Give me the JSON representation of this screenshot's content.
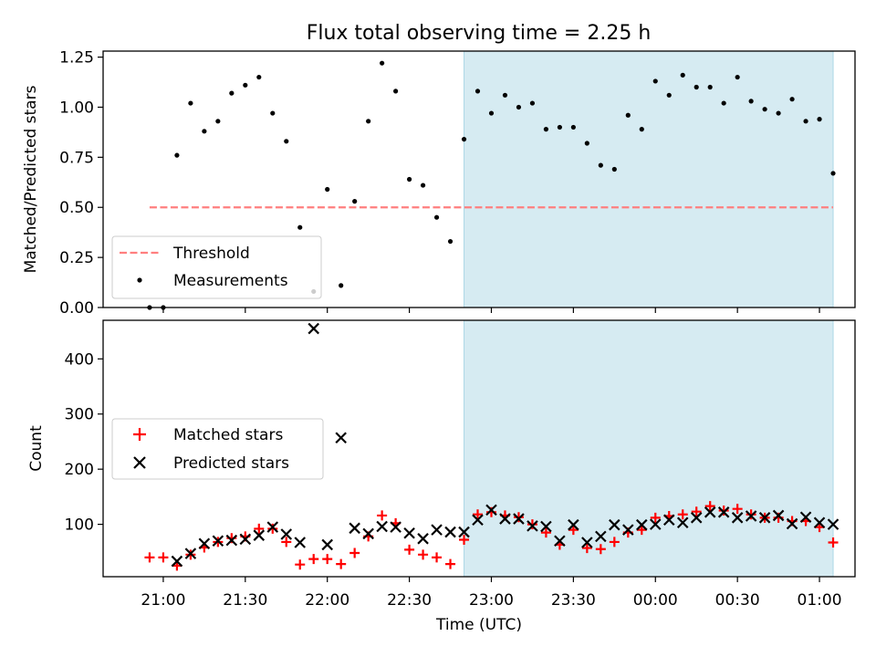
{
  "title": "Flux total observing time = 2.25 h",
  "xlabel": "Time (UTC)",
  "colors": {
    "measurements": "#000000",
    "threshold": "#ff7f7f",
    "matched": "#ff0000",
    "predicted": "#000000",
    "shade": "#add8e6"
  },
  "chart_data": [
    {
      "type": "scatter",
      "ylabel": "Matched/Predicted stars",
      "xlim": [
        "20:38",
        "01:13"
      ],
      "ylim": [
        0,
        1.28
      ],
      "yticks": [
        "0.00",
        "0.25",
        "0.50",
        "0.75",
        "1.00",
        "1.25"
      ],
      "shaded_region": [
        "22:50",
        "01:05"
      ],
      "legend": {
        "placement": "lower-left",
        "entries": [
          {
            "label": "Threshold",
            "marker": "dashed-line"
          },
          {
            "label": "Measurements",
            "marker": "dot"
          }
        ]
      },
      "threshold": {
        "y": 0.5,
        "x": [
          "20:55",
          "01:05"
        ]
      },
      "series": [
        {
          "name": "Measurements",
          "points": [
            [
              "20:55",
              0.0
            ],
            [
              "21:00",
              0.0
            ],
            [
              "21:05",
              0.76
            ],
            [
              "21:10",
              1.02
            ],
            [
              "21:15",
              0.88
            ],
            [
              "21:20",
              0.93
            ],
            [
              "21:25",
              1.07
            ],
            [
              "21:30",
              1.11
            ],
            [
              "21:35",
              1.15
            ],
            [
              "21:40",
              0.97
            ],
            [
              "21:45",
              0.83
            ],
            [
              "21:50",
              0.4
            ],
            [
              "21:55",
              0.08
            ],
            [
              "22:00",
              0.59
            ],
            [
              "22:05",
              0.11
            ],
            [
              "22:10",
              0.53
            ],
            [
              "22:15",
              0.93
            ],
            [
              "22:20",
              1.22
            ],
            [
              "22:25",
              1.08
            ],
            [
              "22:30",
              0.64
            ],
            [
              "22:35",
              0.61
            ],
            [
              "22:40",
              0.45
            ],
            [
              "22:45",
              0.33
            ],
            [
              "22:50",
              0.84
            ],
            [
              "22:55",
              1.08
            ],
            [
              "23:00",
              0.97
            ],
            [
              "23:05",
              1.06
            ],
            [
              "23:10",
              1.0
            ],
            [
              "23:15",
              1.02
            ],
            [
              "23:20",
              0.89
            ],
            [
              "23:25",
              0.9
            ],
            [
              "23:30",
              0.9
            ],
            [
              "23:35",
              0.82
            ],
            [
              "23:40",
              0.71
            ],
            [
              "23:45",
              0.69
            ],
            [
              "23:50",
              0.96
            ],
            [
              "23:55",
              0.89
            ],
            [
              "00:00",
              1.13
            ],
            [
              "00:05",
              1.06
            ],
            [
              "00:10",
              1.16
            ],
            [
              "00:15",
              1.1
            ],
            [
              "00:20",
              1.1
            ],
            [
              "00:25",
              1.02
            ],
            [
              "00:30",
              1.15
            ],
            [
              "00:35",
              1.03
            ],
            [
              "00:40",
              0.99
            ],
            [
              "00:45",
              0.97
            ],
            [
              "00:50",
              1.04
            ],
            [
              "00:55",
              0.93
            ],
            [
              "01:00",
              0.94
            ],
            [
              "01:05",
              0.67
            ]
          ]
        }
      ]
    },
    {
      "type": "scatter",
      "ylabel": "Count",
      "xlim": [
        "20:38",
        "01:13"
      ],
      "ylim": [
        5,
        470
      ],
      "yticks": [
        "100",
        "200",
        "300",
        "400"
      ],
      "xticks": [
        "21:00",
        "21:30",
        "22:00",
        "22:30",
        "23:00",
        "23:30",
        "00:00",
        "00:30",
        "01:00"
      ],
      "shaded_region": [
        "22:50",
        "01:05"
      ],
      "legend": {
        "placement": "center-left",
        "entries": [
          {
            "label": "Matched stars",
            "marker": "plus"
          },
          {
            "label": "Predicted stars",
            "marker": "x"
          }
        ]
      },
      "series": [
        {
          "name": "Matched stars",
          "points": [
            [
              "20:55",
              40
            ],
            [
              "21:00",
              40
            ],
            [
              "21:05",
              25
            ],
            [
              "21:10",
              45
            ],
            [
              "21:15",
              58
            ],
            [
              "21:20",
              68
            ],
            [
              "21:25",
              75
            ],
            [
              "21:30",
              78
            ],
            [
              "21:35",
              92
            ],
            [
              "21:40",
              92
            ],
            [
              "21:45",
              68
            ],
            [
              "21:50",
              27
            ],
            [
              "21:55",
              37
            ],
            [
              "22:00",
              37
            ],
            [
              "22:05",
              28
            ],
            [
              "22:10",
              48
            ],
            [
              "22:15",
              78
            ],
            [
              "22:20",
              116
            ],
            [
              "22:25",
              102
            ],
            [
              "22:30",
              54
            ],
            [
              "22:35",
              45
            ],
            [
              "22:40",
              40
            ],
            [
              "22:45",
              28
            ],
            [
              "22:50",
              72
            ],
            [
              "22:55",
              118
            ],
            [
              "23:00",
              122
            ],
            [
              "23:05",
              116
            ],
            [
              "23:10",
              113
            ],
            [
              "23:15",
              100
            ],
            [
              "23:20",
              85
            ],
            [
              "23:25",
              63
            ],
            [
              "23:30",
              90
            ],
            [
              "23:35",
              57
            ],
            [
              "23:40",
              55
            ],
            [
              "23:45",
              68
            ],
            [
              "23:50",
              85
            ],
            [
              "23:55",
              90
            ],
            [
              "00:00",
              112
            ],
            [
              "00:05",
              115
            ],
            [
              "00:10",
              118
            ],
            [
              "00:15",
              123
            ],
            [
              "00:20",
              133
            ],
            [
              "00:25",
              125
            ],
            [
              "00:30",
              128
            ],
            [
              "00:35",
              118
            ],
            [
              "00:40",
              112
            ],
            [
              "00:45",
              112
            ],
            [
              "00:50",
              106
            ],
            [
              "00:55",
              106
            ],
            [
              "01:00",
              95
            ],
            [
              "01:05",
              67
            ]
          ]
        },
        {
          "name": "Predicted stars",
          "points": [
            [
              "21:05",
              33
            ],
            [
              "21:10",
              47
            ],
            [
              "21:15",
              65
            ],
            [
              "21:20",
              70
            ],
            [
              "21:25",
              71
            ],
            [
              "21:30",
              73
            ],
            [
              "21:35",
              80
            ],
            [
              "21:40",
              95
            ],
            [
              "21:45",
              82
            ],
            [
              "21:50",
              67
            ],
            [
              "21:55",
              455
            ],
            [
              "22:00",
              63
            ],
            [
              "22:05",
              257
            ],
            [
              "22:10",
              93
            ],
            [
              "22:15",
              83
            ],
            [
              "22:20",
              96
            ],
            [
              "22:25",
              95
            ],
            [
              "22:30",
              84
            ],
            [
              "22:35",
              74
            ],
            [
              "22:40",
              90
            ],
            [
              "22:45",
              86
            ],
            [
              "22:50",
              86
            ],
            [
              "22:55",
              108
            ],
            [
              "23:00",
              126
            ],
            [
              "23:05",
              110
            ],
            [
              "23:10",
              110
            ],
            [
              "23:15",
              97
            ],
            [
              "23:20",
              96
            ],
            [
              "23:25",
              70
            ],
            [
              "23:30",
              99
            ],
            [
              "23:35",
              67
            ],
            [
              "23:40",
              78
            ],
            [
              "23:45",
              99
            ],
            [
              "23:50",
              90
            ],
            [
              "23:55",
              99
            ],
            [
              "00:00",
              100
            ],
            [
              "00:05",
              108
            ],
            [
              "00:10",
              103
            ],
            [
              "00:15",
              112
            ],
            [
              "00:20",
              122
            ],
            [
              "00:25",
              122
            ],
            [
              "00:30",
              112
            ],
            [
              "00:35",
              115
            ],
            [
              "00:40",
              112
            ],
            [
              "00:45",
              116
            ],
            [
              "00:50",
              101
            ],
            [
              "00:55",
              113
            ],
            [
              "01:00",
              103
            ],
            [
              "01:05",
              100
            ]
          ]
        }
      ]
    }
  ]
}
